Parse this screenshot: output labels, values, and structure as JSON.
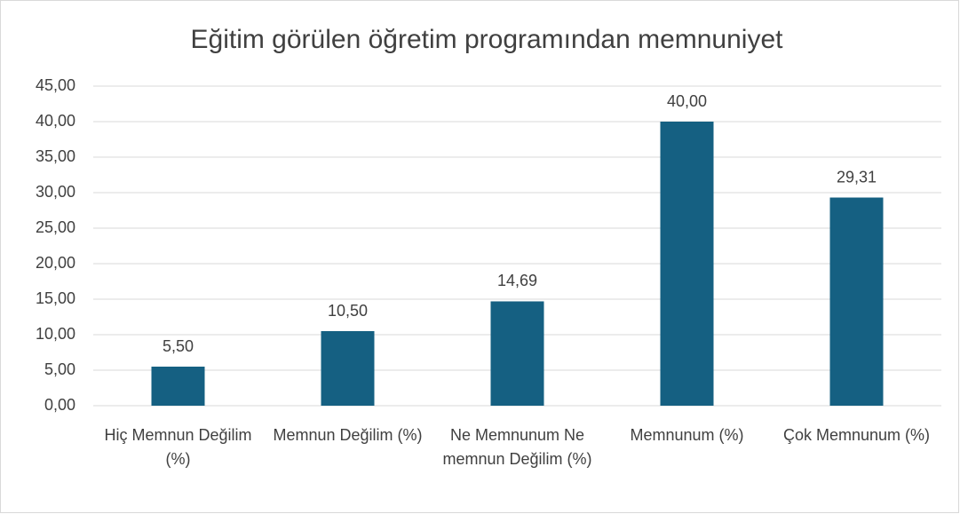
{
  "chart_data": {
    "type": "bar",
    "title": "Eğitim görülen öğretim programından memnuniyet",
    "categories": [
      "Hiç Memnun Değilim (%)",
      "Memnun Değilim (%)",
      "Ne Memnunum Ne memnun Değilim (%)",
      "Memnunum (%)",
      "Çok Memnunum (%)"
    ],
    "values": [
      5.5,
      10.5,
      14.69,
      40,
      29.31
    ],
    "value_labels": [
      "5,50",
      "10,50",
      "14,69",
      "40,00",
      "29,31"
    ],
    "color": "#156082",
    "ylim": [
      0,
      45
    ],
    "yticks": [
      {
        "value": 0,
        "label": "0,00"
      },
      {
        "value": 5,
        "label": "5,00"
      },
      {
        "value": 10,
        "label": "10,00"
      },
      {
        "value": 15,
        "label": "15,00"
      },
      {
        "value": 20,
        "label": "20,00"
      },
      {
        "value": 25,
        "label": "25,00"
      },
      {
        "value": 30,
        "label": "30,00"
      },
      {
        "value": 35,
        "label": "35,00"
      },
      {
        "value": 40,
        "label": "40,00"
      },
      {
        "value": 45,
        "label": "45,00"
      }
    ],
    "grid": true
  }
}
